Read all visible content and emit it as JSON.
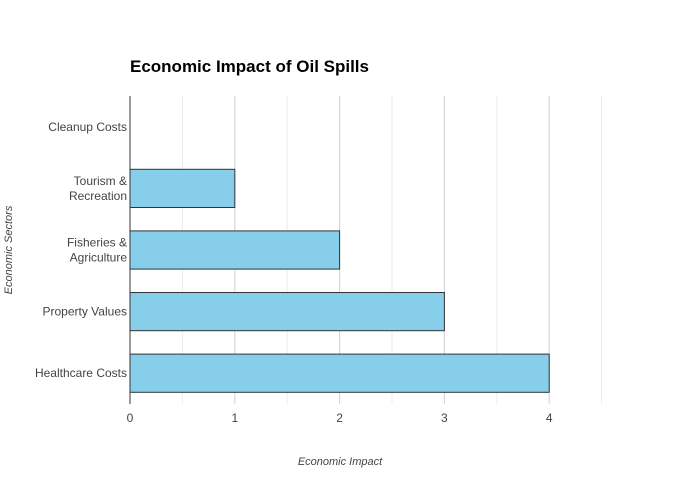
{
  "chart_data": {
    "type": "bar",
    "orientation": "horizontal",
    "title": "Economic Impact of Oil Spills",
    "xlabel": "Economic Impact",
    "ylabel": "Economic Sectors",
    "categories": [
      "Cleanup Costs",
      "Tourism & Recreation",
      "Fisheries & Agriculture",
      "Property Values",
      "Healthcare Costs"
    ],
    "category_display": [
      [
        "Cleanup Costs"
      ],
      [
        "Tourism &",
        "Recreation"
      ],
      [
        "Fisheries &",
        "Agriculture"
      ],
      [
        "Property Values"
      ],
      [
        "Healthcare Costs"
      ]
    ],
    "values": [
      0,
      1,
      2,
      3,
      4
    ],
    "xlim": [
      0,
      4.7
    ],
    "xticks": [
      0,
      1,
      2,
      3,
      4
    ],
    "grid": true,
    "bar_color": "#87CEEB",
    "bar_edge_color": "#333333"
  }
}
